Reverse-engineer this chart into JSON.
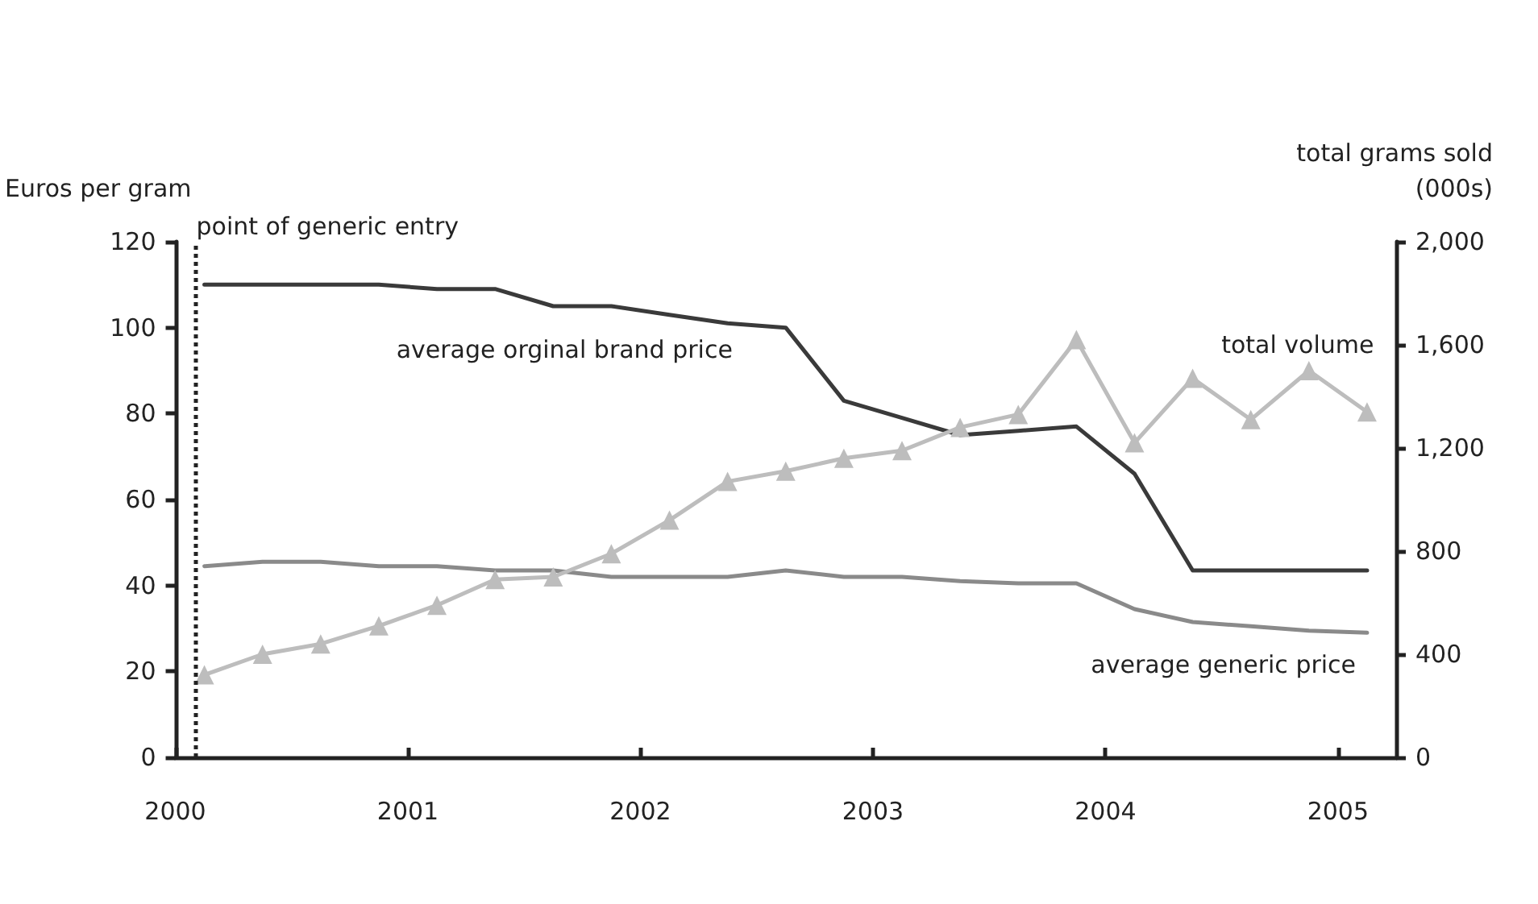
{
  "chart_data": {
    "type": "line",
    "ylabel": "Euros per gram",
    "y2label": "total grams sold\n(000s)",
    "x": [
      2000.125,
      2000.375,
      2000.625,
      2000.875,
      2001.125,
      2001.375,
      2001.625,
      2001.875,
      2002.125,
      2002.375,
      2002.625,
      2002.875,
      2003.125,
      2003.375,
      2003.625,
      2003.875,
      2004.125,
      2004.375,
      2004.625,
      2004.875,
      2005.125
    ],
    "xlim": [
      2000,
      2005.25
    ],
    "xticks": [
      2000,
      2001,
      2002,
      2003,
      2004,
      2005
    ],
    "ylim": [
      0,
      120
    ],
    "yticks": [
      0,
      20,
      40,
      60,
      80,
      100,
      120
    ],
    "y2lim": [
      0,
      2000
    ],
    "y2ticks": [
      0,
      400,
      {
        "value": 800,
        "label": "800"
      },
      {
        "value": 1200,
        "label": "1,200"
      },
      {
        "value": 1600,
        "label": "1,600"
      },
      {
        "value": 2000,
        "label": "2,000"
      }
    ],
    "series": [
      {
        "name": "average orginal brand price",
        "color": "#3a3a3a",
        "marker": "none",
        "values": [
          110,
          110,
          110,
          110,
          109,
          109,
          105,
          105,
          103,
          101,
          100,
          83,
          79,
          75,
          76,
          77,
          66,
          43.5,
          43.5,
          43.5,
          43.5
        ]
      },
      {
        "name": "average generic price",
        "color": "#8a8a8a",
        "marker": "none",
        "values": [
          44.5,
          45.5,
          45.5,
          44.5,
          44.5,
          43.5,
          43.5,
          42,
          42,
          42,
          43.5,
          42,
          42,
          41,
          40.5,
          40.5,
          34.5,
          31.5,
          30.5,
          29.5,
          29
        ]
      },
      {
        "name": "total volume",
        "color": "#bdbdbd",
        "marker": "triangle",
        "axis": "y2",
        "values": [
          320,
          400,
          440,
          510,
          590,
          690,
          700,
          790,
          920,
          1070,
          1110,
          1160,
          1190,
          1280,
          1330,
          1620,
          1220,
          1470,
          1310,
          1500,
          1340
        ]
      }
    ],
    "ref_lines": [
      {
        "axis": "x",
        "value": 2000.09,
        "label": "point of generic entry",
        "color": "#222222",
        "line_style": "dotted"
      }
    ],
    "legend": false,
    "grid": false
  }
}
